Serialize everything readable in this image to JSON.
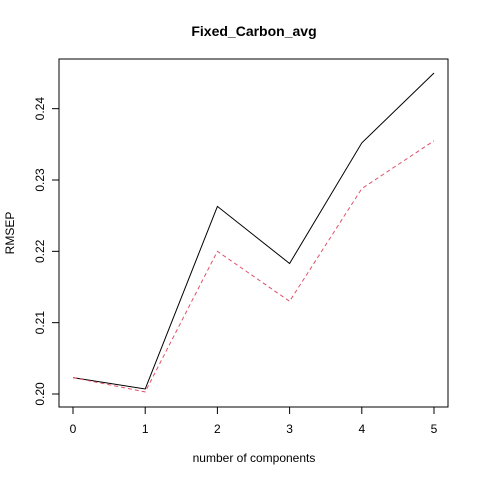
{
  "chart_data": {
    "type": "line",
    "title": "Fixed_Carbon_avg",
    "xlabel": "number of components",
    "ylabel": "RMSEP",
    "x": [
      0,
      1,
      2,
      3,
      4,
      5
    ],
    "xlim": [
      0,
      5
    ],
    "ylim": [
      0.2,
      0.245
    ],
    "x_ticks": [
      0,
      1,
      2,
      3,
      4,
      5
    ],
    "y_ticks": [
      0.2,
      0.21,
      0.22,
      0.23,
      0.24
    ],
    "y_tick_labels": [
      "0.20",
      "0.21",
      "0.22",
      "0.23",
      "0.24"
    ],
    "series": [
      {
        "values": [
          0.2023,
          0.2007,
          0.2263,
          0.2183,
          0.2352,
          0.245
        ],
        "color": "#000000",
        "style": "solid"
      },
      {
        "values": [
          0.2023,
          0.2003,
          0.22,
          0.213,
          0.2288,
          0.2355
        ],
        "color": "#DF536B",
        "style": "dashed"
      }
    ],
    "grid": false,
    "legend": "none"
  }
}
